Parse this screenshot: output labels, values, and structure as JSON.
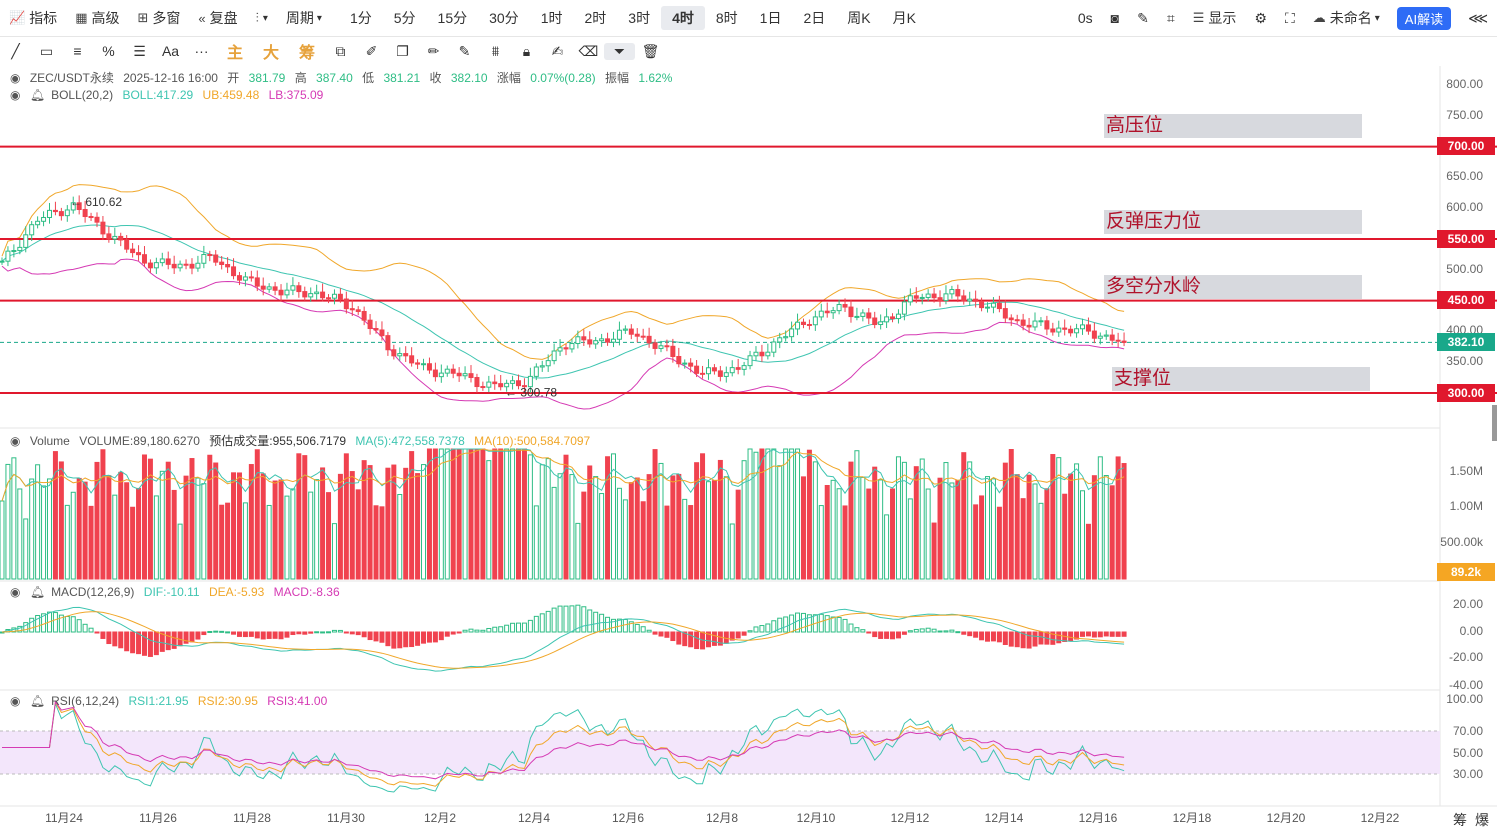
{
  "toolbar": {
    "indicators": "指标",
    "advanced": "高级",
    "multi_window": "多窗",
    "replay": "复盘",
    "candle_type": "",
    "period": "周期",
    "timeframes": [
      "1分",
      "5分",
      "15分",
      "30分",
      "1时",
      "2时",
      "3时",
      "4时",
      "8时",
      "1日",
      "2日",
      "周K",
      "月K"
    ],
    "active_timeframe": "4时",
    "countdown": "0s",
    "display": "显示",
    "layout_name": "未命名",
    "ai_button": "AI解读"
  },
  "drawbar": {
    "chinese_tools": [
      "主",
      "大",
      "筹"
    ]
  },
  "main_legend": {
    "symbol": "ZEC/USDT永续",
    "time": "2025-12-16 16:00",
    "open_label": "开",
    "open": "381.79",
    "high_label": "高",
    "high": "387.40",
    "low_label": "低",
    "low": "381.21",
    "close_label": "收",
    "close": "382.10",
    "change_label": "涨幅",
    "change": "0.07%(0.28)",
    "amp_label": "振幅",
    "amp": "1.62%"
  },
  "boll_legend": {
    "name": "BOLL(20,2)",
    "mid": "BOLL:417.29",
    "ub": "UB:459.48",
    "lb": "LB:375.09"
  },
  "volume_legend": {
    "name": "Volume",
    "volume": "VOLUME:89,180.6270",
    "estimate": "预估成交量:955,506.7179",
    "ma5": "MA(5):472,558.7378",
    "ma10": "MA(10):500,584.7097"
  },
  "macd_legend": {
    "name": "MACD(12,26,9)",
    "dif": "DIF:-10.11",
    "dea": "DEA:-5.93",
    "macd": "MACD:-8.36"
  },
  "rsi_legend": {
    "name": "RSI(6,12,24)",
    "rsi1": "RSI1:21.95",
    "rsi2": "RSI2:30.95",
    "rsi3": "RSI3:41.00"
  },
  "annotations": {
    "high_marker": "610.62",
    "low_marker": "300.78",
    "zones": [
      "高压位",
      "反弹压力位",
      "多空分水岭",
      "支撑位"
    ]
  },
  "price_axis": [
    "800.00",
    "750.00",
    "700.00",
    "650.00",
    "600.00",
    "550.00",
    "500.00",
    "450.00",
    "400.00",
    "350.00",
    "300.00"
  ],
  "price_tags": {
    "l700": "700.00",
    "l550": "550.00",
    "l450": "450.00",
    "last": "382.10",
    "l300": "300.00"
  },
  "volume_axis": [
    "1.50M",
    "1.00M",
    "500.00k"
  ],
  "volume_tag": "89.2k",
  "macd_axis": [
    "20.00",
    "0.00",
    "-20.00",
    "-40.00"
  ],
  "rsi_axis": [
    "100.00",
    "70.00",
    "50.00",
    "30.00"
  ],
  "x_axis": [
    "11月24",
    "11月26",
    "11月28",
    "11月30",
    "12月2",
    "12月4",
    "12月6",
    "12月8",
    "12月10",
    "12月12",
    "12月14",
    "12月16",
    "12月18",
    "12月20",
    "12月22"
  ],
  "footer": {
    "left": "筹",
    "right": "爆"
  },
  "colors": {
    "up": "#2ebd85",
    "down": "#f0424f",
    "level": "#e0182d",
    "boll_mid": "#3fc5b1",
    "boll_ub": "#f0a72a",
    "boll_lb": "#d53ab4"
  },
  "chart_data": {
    "type": "candlestick",
    "symbol": "ZEC/USDT永续",
    "interval": "4时",
    "ylim": [
      270,
      820
    ],
    "levels": [
      {
        "label": "高压位",
        "price": 700
      },
      {
        "label": "反弹压力位",
        "price": 550
      },
      {
        "label": "多空分水岭",
        "price": 450
      },
      {
        "label": "支撑位",
        "price": 300
      }
    ],
    "last_price": 382.1,
    "approx_close_path": [
      [
        "11月23 00:00",
        510
      ],
      [
        "11月24 00:00",
        580
      ],
      [
        "11月24 12:00",
        605
      ],
      [
        "11月25 00:00",
        560
      ],
      [
        "11月25 12:00",
        515
      ],
      [
        "11月26 12:00",
        505
      ],
      [
        "11月27 12:00",
        520
      ],
      [
        "11月28 12:00",
        480
      ],
      [
        "11月29 12:00",
        465
      ],
      [
        "11月30 12:00",
        462
      ],
      [
        "12月1 00:00",
        440
      ],
      [
        "12月1 12:00",
        375
      ],
      [
        "12月2 00:00",
        340
      ],
      [
        "12月2 12:00",
        330
      ],
      [
        "12月3 00:00",
        310
      ],
      [
        "12月3 12:00",
        320
      ],
      [
        "12月4 00:00",
        380
      ],
      [
        "12月5 00:00",
        385
      ],
      [
        "12月5 12:00",
        400
      ],
      [
        "12月6 12:00",
        365
      ],
      [
        "12月7 12:00",
        330
      ],
      [
        "12月8 12:00",
        340
      ],
      [
        "12月9 00:00",
        380
      ],
      [
        "12月9 12:00",
        420
      ],
      [
        "12月10 12:00",
        440
      ],
      [
        "12月11 12:00",
        410
      ],
      [
        "12月12 00:00",
        455
      ],
      [
        "12月13 00:00",
        460
      ],
      [
        "12月13 12:00",
        445
      ],
      [
        "12月14 12:00",
        415
      ],
      [
        "12月15 12:00",
        405
      ],
      [
        "12月16 12:00",
        400
      ],
      [
        "12月16 16:00",
        382.1
      ]
    ]
  }
}
